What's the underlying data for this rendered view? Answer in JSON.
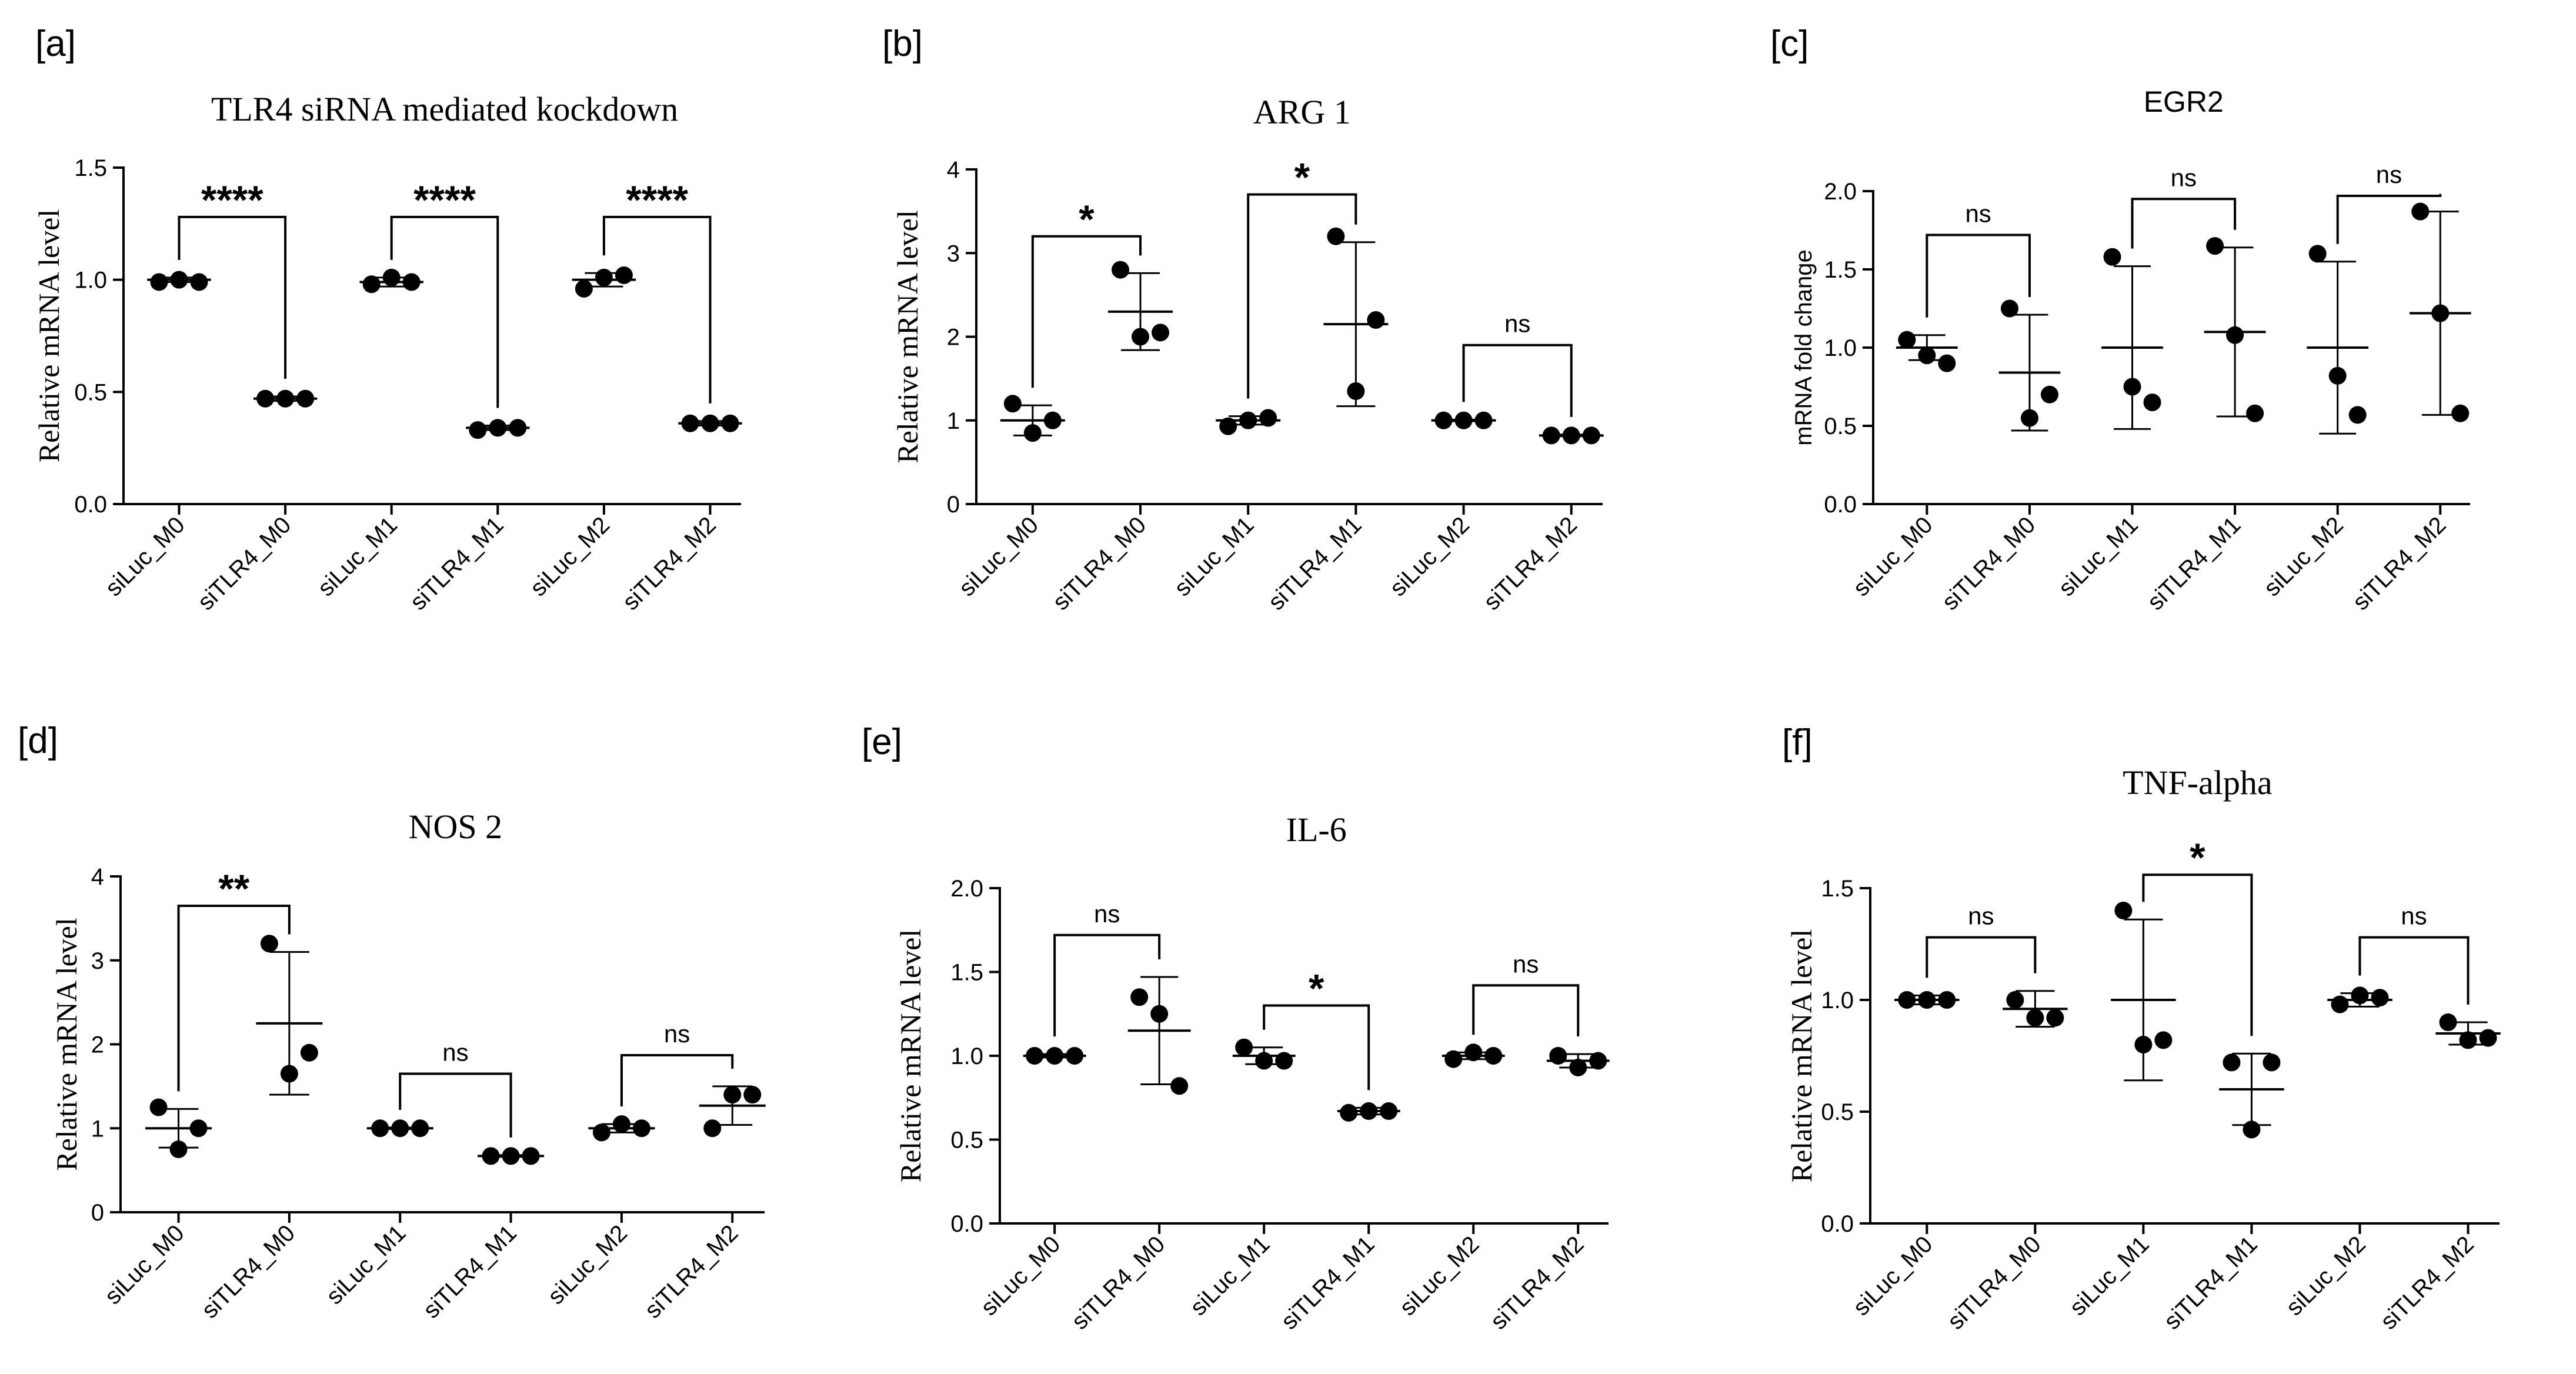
{
  "chart_data": [
    {
      "panel": "[a]",
      "type": "scatter",
      "title": "TLR4 siRNA mediated kockdown",
      "ylabel": "Relative mRNA level",
      "xlabel": "",
      "ylim": [
        0,
        1.5
      ],
      "yticks": [
        "0.0",
        "0.5",
        "1.0",
        "1.5"
      ],
      "categories": [
        "siLuc_M0",
        "siTLR4_M0",
        "siLuc_M1",
        "siTLR4_M1",
        "siLuc_M2",
        "siTLR4_M2"
      ],
      "points": [
        [
          0.99,
          1.0,
          0.99
        ],
        [
          0.47,
          0.47,
          0.47
        ],
        [
          0.98,
          1.01,
          0.99
        ],
        [
          0.33,
          0.34,
          0.34
        ],
        [
          0.96,
          1.01,
          1.02
        ],
        [
          0.36,
          0.36,
          0.36
        ]
      ],
      "means": [
        1.0,
        0.47,
        0.99,
        0.34,
        1.0,
        0.36
      ],
      "sd": [
        0.01,
        0.01,
        0.02,
        0.01,
        0.03,
        0.01
      ],
      "comparisons": [
        {
          "from": 0,
          "to": 1,
          "label": "****",
          "y": 1.28
        },
        {
          "from": 2,
          "to": 3,
          "label": "****",
          "y": 1.28
        },
        {
          "from": 4,
          "to": 5,
          "label": "****",
          "y": 1.28
        }
      ]
    },
    {
      "panel": "[b]",
      "type": "scatter",
      "title": "ARG 1",
      "ylabel": "Relative mRNA level",
      "xlabel": "",
      "ylim": [
        0,
        4
      ],
      "yticks": [
        "0",
        "1",
        "2",
        "3",
        "4"
      ],
      "categories": [
        "siLuc_M0",
        "siTLR4_M0",
        "siLuc_M1",
        "siTLR4_M1",
        "siLuc_M2",
        "siTLR4_M2"
      ],
      "points": [
        [
          1.2,
          0.85,
          1.0
        ],
        [
          2.8,
          2.0,
          2.05
        ],
        [
          0.93,
          1.0,
          1.03
        ],
        [
          3.2,
          1.35,
          2.2
        ],
        [
          1.0,
          1.0,
          1.0
        ],
        [
          0.82,
          0.82,
          0.82
        ]
      ],
      "means": [
        1.0,
        2.3,
        1.0,
        2.15,
        1.0,
        0.82
      ],
      "sd": [
        0.18,
        0.46,
        0.05,
        0.98,
        0.01,
        0.01
      ],
      "comparisons": [
        {
          "from": 0,
          "to": 1,
          "label": "*",
          "y": 3.2
        },
        {
          "from": 2,
          "to": 3,
          "label": "*",
          "y": 3.7
        },
        {
          "from": 4,
          "to": 5,
          "label": "ns",
          "y": 1.9
        }
      ]
    },
    {
      "panel": "[c]",
      "type": "scatter",
      "title": "EGR2",
      "ylabel": "mRNA fold change",
      "xlabel": "",
      "ylim": [
        0,
        2.0
      ],
      "yticks": [
        "0.0",
        "0.5",
        "1.0",
        "1.5",
        "2.0"
      ],
      "categories": [
        "siLuc_M0",
        "siTLR4_M0",
        "siLuc_M1",
        "siTLR4_M1",
        "siLuc_M2",
        "siTLR4_M2"
      ],
      "points": [
        [
          1.05,
          0.95,
          0.9
        ],
        [
          1.25,
          0.55,
          0.7
        ],
        [
          1.58,
          0.75,
          0.65
        ],
        [
          1.65,
          1.08,
          0.58
        ],
        [
          1.6,
          0.82,
          0.57
        ],
        [
          1.87,
          1.22,
          0.58
        ]
      ],
      "means": [
        1.0,
        0.84,
        1.0,
        1.1,
        1.0,
        1.22
      ],
      "sd": [
        0.08,
        0.37,
        0.52,
        0.54,
        0.55,
        0.65
      ],
      "comparisons": [
        {
          "from": 0,
          "to": 1,
          "label": "ns",
          "y": 1.72
        },
        {
          "from": 2,
          "to": 3,
          "label": "ns",
          "y": 1.95
        },
        {
          "from": 4,
          "to": 5,
          "label": "ns",
          "y": 1.97
        }
      ]
    },
    {
      "panel": "[d]",
      "type": "scatter",
      "title": "NOS 2",
      "ylabel": "Relative mRNA level",
      "xlabel": "",
      "ylim": [
        0,
        4
      ],
      "yticks": [
        "0",
        "1",
        "2",
        "3",
        "4"
      ],
      "categories": [
        "siLuc_M0",
        "siTLR4_M0",
        "siLuc_M1",
        "siTLR4_M1",
        "siLuc_M2",
        "siTLR4_M2"
      ],
      "points": [
        [
          1.25,
          0.75,
          1.0
        ],
        [
          3.2,
          1.65,
          1.9
        ],
        [
          1.0,
          1.0,
          1.0
        ],
        [
          0.67,
          0.67,
          0.67
        ],
        [
          0.95,
          1.05,
          1.0
        ],
        [
          1.0,
          1.4,
          1.4
        ]
      ],
      "means": [
        1.0,
        2.25,
        1.0,
        0.67,
        1.0,
        1.27
      ],
      "sd": [
        0.23,
        0.85,
        0.01,
        0.01,
        0.05,
        0.23
      ],
      "comparisons": [
        {
          "from": 0,
          "to": 1,
          "label": "**",
          "y": 3.65
        },
        {
          "from": 2,
          "to": 3,
          "label": "ns",
          "y": 1.65
        },
        {
          "from": 4,
          "to": 5,
          "label": "ns",
          "y": 1.87
        }
      ]
    },
    {
      "panel": "[e]",
      "type": "scatter",
      "title": "IL-6",
      "ylabel": "Relative mRNA level",
      "xlabel": "",
      "ylim": [
        0,
        2.0
      ],
      "yticks": [
        "0.0",
        "0.5",
        "1.0",
        "1.5",
        "2.0"
      ],
      "categories": [
        "siLuc_M0",
        "siTLR4_M0",
        "siLuc_M1",
        "siTLR4_M1",
        "siLuc_M2",
        "siTLR4_M2"
      ],
      "points": [
        [
          1.0,
          1.0,
          1.0
        ],
        [
          1.35,
          1.25,
          0.82
        ],
        [
          1.05,
          0.97,
          0.97
        ],
        [
          0.66,
          0.67,
          0.67
        ],
        [
          0.98,
          1.02,
          1.0
        ],
        [
          1.0,
          0.93,
          0.97
        ]
      ],
      "means": [
        1.0,
        1.15,
        1.0,
        0.67,
        1.0,
        0.97
      ],
      "sd": [
        0.01,
        0.32,
        0.05,
        0.02,
        0.02,
        0.04
      ],
      "comparisons": [
        {
          "from": 0,
          "to": 1,
          "label": "ns",
          "y": 1.72
        },
        {
          "from": 2,
          "to": 3,
          "label": "*",
          "y": 1.3
        },
        {
          "from": 4,
          "to": 5,
          "label": "ns",
          "y": 1.42
        }
      ]
    },
    {
      "panel": "[f]",
      "type": "scatter",
      "title": "TNF-alpha",
      "ylabel": "Relative mRNA level",
      "xlabel": "",
      "ylim": [
        0,
        1.5
      ],
      "yticks": [
        "0.0",
        "0.5",
        "1.0",
        "1.5"
      ],
      "categories": [
        "siLuc_M0",
        "siTLR4_M0",
        "siLuc_M1",
        "siTLR4_M1",
        "siLuc_M2",
        "siTLR4_M2"
      ],
      "points": [
        [
          1.0,
          1.0,
          1.0
        ],
        [
          1.0,
          0.92,
          0.92
        ],
        [
          1.4,
          0.8,
          0.82
        ],
        [
          0.72,
          0.42,
          0.72
        ],
        [
          0.98,
          1.02,
          1.01
        ],
        [
          0.9,
          0.82,
          0.83
        ]
      ],
      "means": [
        1.0,
        0.96,
        1.0,
        0.6,
        1.0,
        0.85
      ],
      "sd": [
        0.02,
        0.08,
        0.36,
        0.16,
        0.03,
        0.05
      ],
      "comparisons": [
        {
          "from": 0,
          "to": 1,
          "label": "ns",
          "y": 1.28
        },
        {
          "from": 2,
          "to": 3,
          "label": "*",
          "y": 1.56
        },
        {
          "from": 4,
          "to": 5,
          "label": "ns",
          "y": 1.28
        }
      ]
    }
  ]
}
